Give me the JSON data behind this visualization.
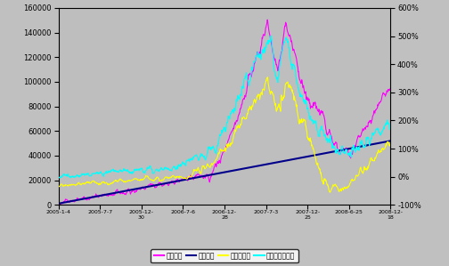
{
  "bg_color": "#c0c0c0",
  "plot_bg_color": "#bebebe",
  "x_tick_labels_top": [
    "2005-1-4",
    "2005-7-7",
    "2005-12-",
    "2006-7-6",
    "2006-12-",
    "2007-7-3",
    "2007-12-",
    "2008-6-25",
    "2008-12-"
  ],
  "x_tick_labels_bot": [
    "",
    "",
    "30",
    "",
    "28",
    "",
    "25",
    "",
    "18"
  ],
  "left_yticks": [
    0,
    20000,
    40000,
    60000,
    80000,
    100000,
    120000,
    140000,
    160000
  ],
  "right_yticks_vals": [
    -1,
    0,
    1,
    2,
    3,
    4,
    5,
    6
  ],
  "right_ytick_labels": [
    "-100%",
    "0%",
    "100%",
    "200%",
    "300%",
    "400%",
    "500%",
    "600%"
  ],
  "legend_labels": [
    "累计资产",
    "累计本金",
    "累计收益率",
    "基金累计收益率"
  ],
  "legend_colors": [
    "#ff00ff",
    "#00008b",
    "#ffff00",
    "#00ffff"
  ],
  "line_colors": {
    "cumulative_asset": "#ff00ff",
    "cumulative_principal": "#00008b",
    "cumulative_return": "#ffff00",
    "fund_cumulative_return": "#00ffff"
  },
  "ylim_left": [
    0,
    160000
  ],
  "ylim_right": [
    -1,
    6
  ],
  "n_points": 950
}
